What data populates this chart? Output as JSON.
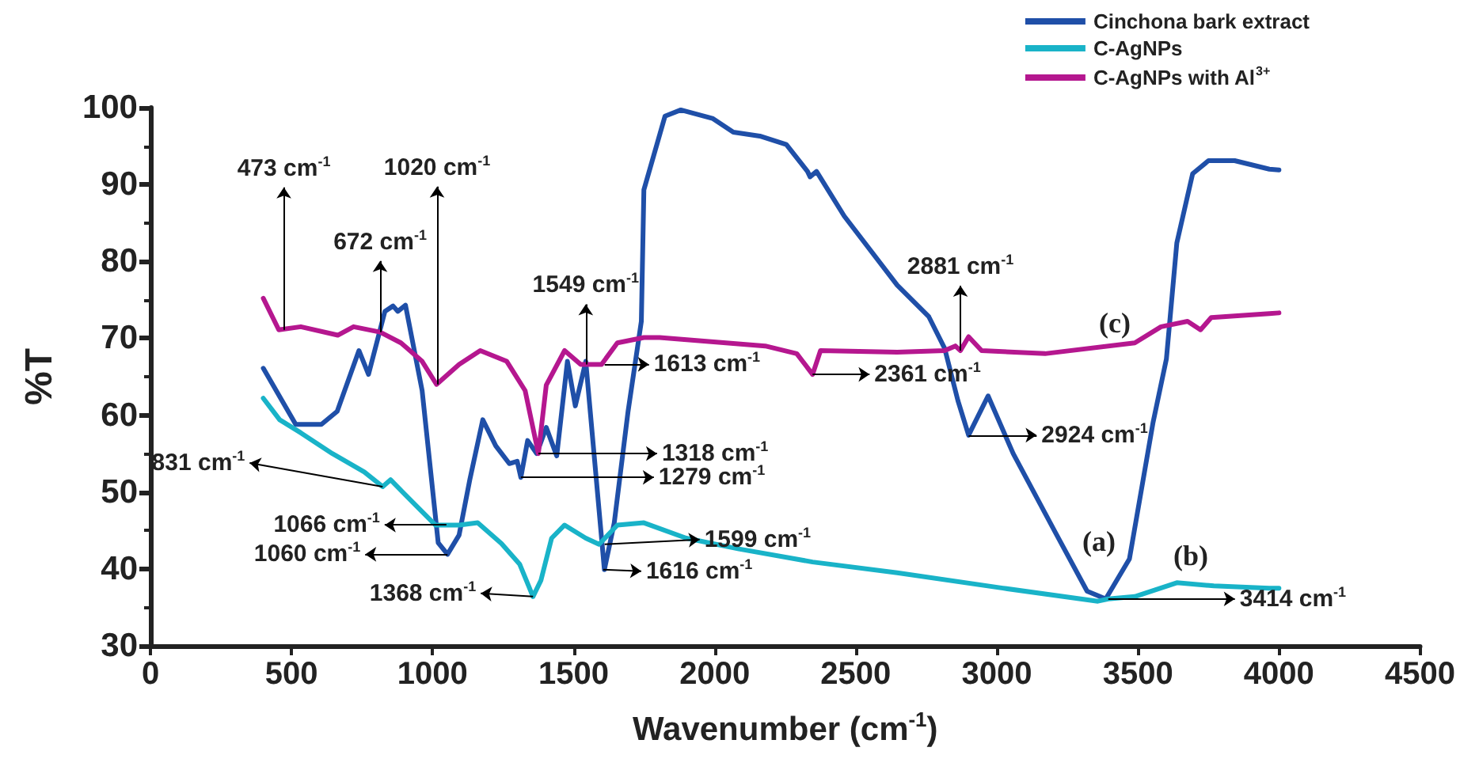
{
  "chart_data": {
    "type": "line",
    "xlabel": "Wavenumber (cm$^{-1}$)",
    "ylabel": "%T",
    "xlim": [
      0,
      4500
    ],
    "xticks": [
      0,
      500,
      1000,
      1500,
      2000,
      2500,
      3000,
      3500,
      4000,
      4500
    ],
    "ylim": [
      30,
      100
    ],
    "yticks": [
      30,
      40,
      50,
      60,
      70,
      80,
      90,
      100
    ],
    "grid": false,
    "legend": "top right",
    "marker": "none",
    "line_style": "solid",
    "series": [
      {
        "name": "Cinchona bark extract",
        "color": "#1f4fa8",
        "x": [
          400,
          515,
          606,
          662,
          739,
          773,
          831,
          860,
          877,
          904,
          963,
          1020,
          1053,
          1094,
          1132,
          1178,
          1224,
          1272,
          1300,
          1313,
          1337,
          1369,
          1403,
          1440,
          1478,
          1506,
          1543,
          1609,
          1644,
          1693,
          1740,
          1749,
          1824,
          1880,
          1992,
          2066,
          2160,
          2254,
          2329,
          2338,
          2361,
          2459,
          2647,
          2759,
          2815,
          2862,
          2900,
          2969,
          3058,
          3208,
          3320,
          3386,
          3470,
          3554,
          3601,
          3638,
          3694,
          3750,
          3843,
          3966,
          4000
        ],
        "values": [
          66.1,
          58.8,
          58.8,
          60.5,
          68.4,
          65.3,
          73.5,
          74.2,
          73.5,
          74.3,
          63.2,
          43.4,
          41.9,
          44.4,
          51.6,
          59.4,
          56,
          53.7,
          54,
          51.9,
          56.7,
          55,
          58.4,
          54.7,
          67,
          61.2,
          67,
          39.9,
          46,
          60.5,
          72.2,
          89.3,
          98.9,
          99.7,
          98.6,
          96.8,
          96.3,
          95.2,
          91.7,
          91,
          91.7,
          85.9,
          76.9,
          72.8,
          68.7,
          61.9,
          57.4,
          62.5,
          55,
          44.7,
          37.1,
          36.1,
          41.3,
          59.1,
          67.3,
          82.4,
          91.4,
          93.1,
          93.1,
          92,
          91.9
        ]
      },
      {
        "name": "C-AgNPs",
        "color": "#19b3c8",
        "x": [
          400,
          458,
          533,
          645,
          758,
          823,
          851,
          945,
          1010,
          1094,
          1160,
          1244,
          1309,
          1356,
          1384,
          1422,
          1468,
          1543,
          1590,
          1655,
          1749,
          1899,
          2086,
          2347,
          2647,
          3021,
          3358,
          3395,
          3489,
          3638,
          3769,
          3966,
          4000
        ],
        "values": [
          62.2,
          59.4,
          57.7,
          55,
          52.6,
          50.7,
          51.6,
          48.1,
          45.7,
          45.7,
          46,
          43.3,
          40.6,
          36.4,
          38.5,
          44,
          45.7,
          44,
          43.2,
          45.7,
          46,
          44,
          42.6,
          40.9,
          39.5,
          37.5,
          35.8,
          36.1,
          36.4,
          38.2,
          37.8,
          37.5,
          37.5
        ]
      },
      {
        "name": "C-AgNPs with Al$^{3+}$",
        "color": "#b5178f",
        "x": [
          400,
          455,
          533,
          664,
          720,
          814,
          888,
          963,
          1014,
          1094,
          1169,
          1263,
          1328,
          1375,
          1403,
          1468,
          1525,
          1599,
          1655,
          1749,
          1805,
          2179,
          2291,
          2347,
          2375,
          2647,
          2815,
          2853,
          2871,
          2900,
          2946,
          3171,
          3489,
          3582,
          3676,
          3722,
          3760,
          3966,
          4000
        ],
        "values": [
          75.2,
          71.1,
          71.5,
          70.4,
          71.5,
          70.8,
          69.4,
          67,
          64,
          66.6,
          68.4,
          67,
          63.2,
          55,
          63.9,
          68.4,
          66.6,
          66.6,
          69.4,
          70.1,
          70.1,
          69,
          68,
          65.3,
          68.4,
          68.2,
          68.4,
          69,
          68.4,
          70.2,
          68.4,
          68,
          69.4,
          71.5,
          72.2,
          71.1,
          72.7,
          73.2,
          73.3
        ]
      }
    ],
    "annotations": [
      {
        "text": "473 cm$^{-1}$",
        "x": 473,
        "y": 71.1
      },
      {
        "text": "672 cm$^{-1}$",
        "x": 814,
        "y": 70.8
      },
      {
        "text": "1020 cm$^{-1}$",
        "x": 1016,
        "y": 64
      },
      {
        "text": "1549 cm$^{-1}$",
        "x": 1543,
        "y": 66.6
      },
      {
        "text": "1613 cm$^{-1}$",
        "x": 1610,
        "y": 66.6
      },
      {
        "text": "2361 cm$^{-1}$",
        "x": 2347,
        "y": 65.3
      },
      {
        "text": "2881 cm$^{-1}$",
        "x": 2871,
        "y": 68.4
      },
      {
        "text": "2924 cm$^{-1}$",
        "x": 2900,
        "y": 57.4
      },
      {
        "text": "1318 cm$^{-1}$",
        "x": 1375,
        "y": 55
      },
      {
        "text": "1279 cm$^{-1}$",
        "x": 1313,
        "y": 51.9
      },
      {
        "text": "831 cm$^{-1}$",
        "x": 823,
        "y": 50.7
      },
      {
        "text": "1066 cm$^{-1}$",
        "x": 1049,
        "y": 45.7
      },
      {
        "text": "1060 cm$^{-1}$",
        "x": 1053,
        "y": 41.9
      },
      {
        "text": "1368 cm$^{-1}$",
        "x": 1356,
        "y": 36.4
      },
      {
        "text": "1599 cm$^{-1}$",
        "x": 1610,
        "y": 43.2
      },
      {
        "text": "1616 cm$^{-1}$",
        "x": 1605,
        "y": 39.9
      },
      {
        "text": "3414 cm$^{-1}$",
        "x": 3395,
        "y": 36.1
      },
      "(a)",
      "(b)",
      "(c)"
    ]
  }
}
